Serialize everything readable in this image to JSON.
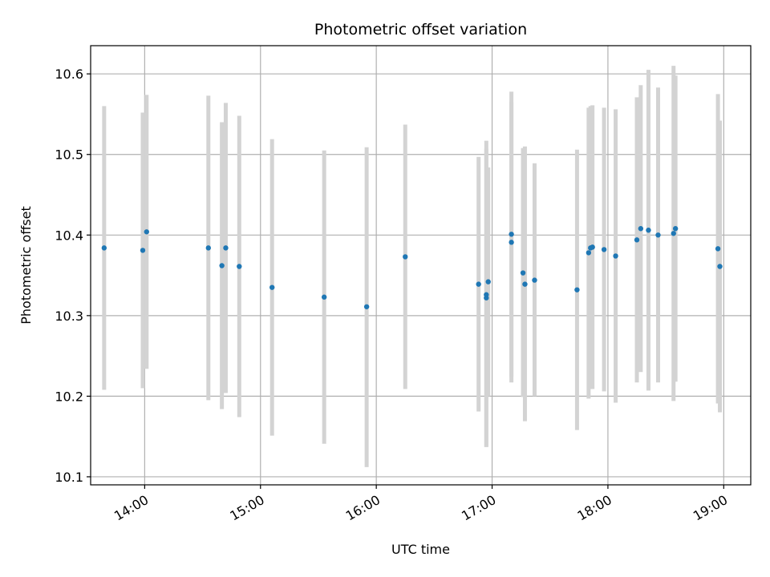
{
  "chart_data": {
    "type": "scatter",
    "title": "Photometric offset variation",
    "xlabel": "UTC time",
    "ylabel": "Photometric offset",
    "x_axis_type": "time",
    "xlim": [
      "13:32",
      "19:14"
    ],
    "ylim": [
      10.09,
      10.635
    ],
    "grid": true,
    "x_ticks": [
      "14:00",
      "15:00",
      "16:00",
      "17:00",
      "18:00",
      "19:00"
    ],
    "y_ticks": [
      10.1,
      10.2,
      10.3,
      10.4,
      10.5,
      10.6
    ],
    "marker_color": "#1f77b4",
    "errorbar_color": "#d3d3d3",
    "points": [
      {
        "x": "13:39",
        "y": 10.384,
        "low": 10.208,
        "high": 10.56
      },
      {
        "x": "13:59",
        "y": 10.381,
        "low": 10.21,
        "high": 10.552
      },
      {
        "x": "14:01",
        "y": 10.404,
        "low": 10.234,
        "high": 10.574
      },
      {
        "x": "14:33",
        "y": 10.384,
        "low": 10.195,
        "high": 10.573
      },
      {
        "x": "14:40",
        "y": 10.362,
        "low": 10.184,
        "high": 10.54
      },
      {
        "x": "14:42",
        "y": 10.384,
        "low": 10.204,
        "high": 10.564
      },
      {
        "x": "14:49",
        "y": 10.361,
        "low": 10.174,
        "high": 10.548
      },
      {
        "x": "15:06",
        "y": 10.335,
        "low": 10.151,
        "high": 10.519
      },
      {
        "x": "15:33",
        "y": 10.323,
        "low": 10.141,
        "high": 10.505
      },
      {
        "x": "15:55",
        "y": 10.311,
        "low": 10.112,
        "high": 10.509
      },
      {
        "x": "16:15",
        "y": 10.373,
        "low": 10.209,
        "high": 10.537
      },
      {
        "x": "16:53",
        "y": 10.339,
        "low": 10.181,
        "high": 10.497
      },
      {
        "x": "16:57",
        "y": 10.322,
        "low": 10.137,
        "high": 10.507
      },
      {
        "x": "16:57",
        "y": 10.326,
        "low": 10.137,
        "high": 10.517
      },
      {
        "x": "16:58",
        "y": 10.342,
        "low": 10.2,
        "high": 10.484
      },
      {
        "x": "17:10",
        "y": 10.391,
        "low": 10.217,
        "high": 10.565
      },
      {
        "x": "17:10",
        "y": 10.401,
        "low": 10.224,
        "high": 10.578
      },
      {
        "x": "17:16",
        "y": 10.353,
        "low": 10.199,
        "high": 10.508
      },
      {
        "x": "17:17",
        "y": 10.339,
        "low": 10.169,
        "high": 10.51
      },
      {
        "x": "17:22",
        "y": 10.344,
        "low": 10.2,
        "high": 10.489
      },
      {
        "x": "17:44",
        "y": 10.332,
        "low": 10.158,
        "high": 10.506
      },
      {
        "x": "17:50",
        "y": 10.378,
        "low": 10.197,
        "high": 10.558
      },
      {
        "x": "17:51",
        "y": 10.384,
        "low": 10.209,
        "high": 10.56
      },
      {
        "x": "17:52",
        "y": 10.385,
        "low": 10.209,
        "high": 10.561
      },
      {
        "x": "17:58",
        "y": 10.382,
        "low": 10.206,
        "high": 10.558
      },
      {
        "x": "18:04",
        "y": 10.374,
        "low": 10.192,
        "high": 10.556
      },
      {
        "x": "18:15",
        "y": 10.394,
        "low": 10.217,
        "high": 10.571
      },
      {
        "x": "18:17",
        "y": 10.408,
        "low": 10.23,
        "high": 10.586
      },
      {
        "x": "18:21",
        "y": 10.406,
        "low": 10.207,
        "high": 10.605
      },
      {
        "x": "18:26",
        "y": 10.4,
        "low": 10.217,
        "high": 10.583
      },
      {
        "x": "18:34",
        "y": 10.402,
        "low": 10.194,
        "high": 10.61
      },
      {
        "x": "18:35",
        "y": 10.408,
        "low": 10.218,
        "high": 10.598
      },
      {
        "x": "18:57",
        "y": 10.383,
        "low": 10.191,
        "high": 10.575
      },
      {
        "x": "18:58",
        "y": 10.361,
        "low": 10.18,
        "high": 10.542
      }
    ]
  }
}
